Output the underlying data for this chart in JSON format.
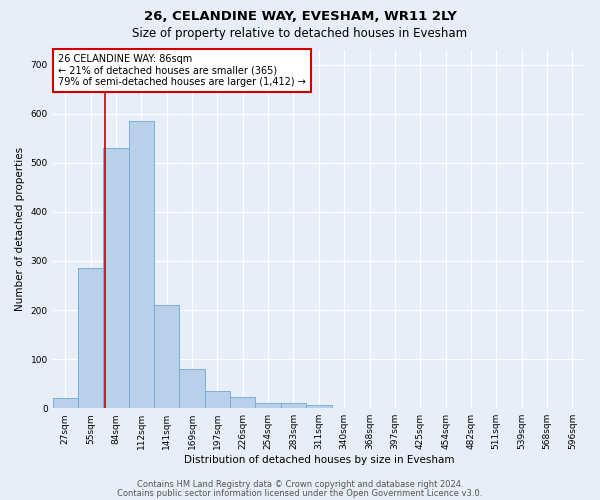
{
  "title": "26, CELANDINE WAY, EVESHAM, WR11 2LY",
  "subtitle": "Size of property relative to detached houses in Evesham",
  "xlabel": "Distribution of detached houses by size in Evesham",
  "ylabel": "Number of detached properties",
  "bin_labels": [
    "27sqm",
    "55sqm",
    "84sqm",
    "112sqm",
    "141sqm",
    "169sqm",
    "197sqm",
    "226sqm",
    "254sqm",
    "283sqm",
    "311sqm",
    "340sqm",
    "368sqm",
    "397sqm",
    "425sqm",
    "454sqm",
    "482sqm",
    "511sqm",
    "539sqm",
    "568sqm",
    "596sqm"
  ],
  "bar_heights": [
    20,
    285,
    530,
    585,
    210,
    80,
    35,
    22,
    10,
    10,
    7,
    0,
    0,
    0,
    0,
    0,
    0,
    0,
    0,
    0,
    0
  ],
  "bar_color": "#b8d0ea",
  "bar_edgecolor": "#6aaad4",
  "annotation_text": "26 CELANDINE WAY: 86sqm\n← 21% of detached houses are smaller (365)\n79% of semi-detached houses are larger (1,412) →",
  "annotation_box_color": "#ffffff",
  "annotation_box_edgecolor": "#cc0000",
  "vline_color": "#cc0000",
  "ylim": [
    0,
    730
  ],
  "yticks": [
    0,
    100,
    200,
    300,
    400,
    500,
    600,
    700
  ],
  "footer_line1": "Contains HM Land Registry data © Crown copyright and database right 2024.",
  "footer_line2": "Contains public sector information licensed under the Open Government Licence v3.0.",
  "bg_color": "#e8eef8",
  "plot_bg_color": "#e8eef8",
  "grid_color": "#ffffff",
  "title_fontsize": 9.5,
  "subtitle_fontsize": 8.5,
  "axis_label_fontsize": 7.5,
  "tick_fontsize": 6.5,
  "annotation_fontsize": 7,
  "footer_fontsize": 6
}
